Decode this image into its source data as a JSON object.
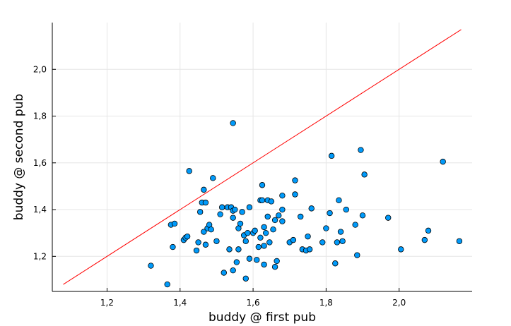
{
  "chart_data": {
    "type": "scatter",
    "xlabel": "buddy @ first pub",
    "ylabel": "buddy @ second pub",
    "xlim": [
      1.05,
      2.2
    ],
    "ylim": [
      1.05,
      2.2
    ],
    "xticks": [
      1.2,
      1.4,
      1.6,
      1.8,
      2.0
    ],
    "yticks": [
      1.2,
      1.4,
      1.6,
      1.8,
      2.0
    ],
    "xtick_labels": [
      "1,2",
      "1,4",
      "1,6",
      "1,8",
      "2,0"
    ],
    "ytick_labels": [
      "1,2",
      "1,4",
      "1,6",
      "1,8",
      "2,0"
    ],
    "grid": true,
    "legend": "none",
    "colors": {
      "points": "#009AFA",
      "point_edge": "#000000",
      "reference_line": "#FF0000",
      "grid": "#E5E5E5"
    },
    "reference_line": {
      "x": [
        1.08,
        2.17
      ],
      "y": [
        1.08,
        2.17
      ]
    },
    "points": [
      [
        1.32,
        1.16
      ],
      [
        1.365,
        1.08
      ],
      [
        1.375,
        1.335
      ],
      [
        1.38,
        1.24
      ],
      [
        1.385,
        1.34
      ],
      [
        1.41,
        1.27
      ],
      [
        1.415,
        1.28
      ],
      [
        1.42,
        1.285
      ],
      [
        1.425,
        1.565
      ],
      [
        1.445,
        1.225
      ],
      [
        1.45,
        1.26
      ],
      [
        1.455,
        1.39
      ],
      [
        1.46,
        1.43
      ],
      [
        1.465,
        1.485
      ],
      [
        1.465,
        1.305
      ],
      [
        1.47,
        1.43
      ],
      [
        1.47,
        1.25
      ],
      [
        1.475,
        1.32
      ],
      [
        1.48,
        1.335
      ],
      [
        1.485,
        1.315
      ],
      [
        1.49,
        1.535
      ],
      [
        1.5,
        1.265
      ],
      [
        1.51,
        1.38
      ],
      [
        1.515,
        1.41
      ],
      [
        1.52,
        1.13
      ],
      [
        1.53,
        1.41
      ],
      [
        1.535,
        1.23
      ],
      [
        1.54,
        1.41
      ],
      [
        1.545,
        1.77
      ],
      [
        1.545,
        1.395
      ],
      [
        1.545,
        1.365
      ],
      [
        1.545,
        1.14
      ],
      [
        1.55,
        1.4
      ],
      [
        1.555,
        1.175
      ],
      [
        1.56,
        1.23
      ],
      [
        1.56,
        1.32
      ],
      [
        1.565,
        1.34
      ],
      [
        1.57,
        1.39
      ],
      [
        1.575,
        1.29
      ],
      [
        1.58,
        1.105
      ],
      [
        1.58,
        1.265
      ],
      [
        1.585,
        1.3
      ],
      [
        1.59,
        1.41
      ],
      [
        1.59,
        1.19
      ],
      [
        1.6,
        1.3
      ],
      [
        1.605,
        1.31
      ],
      [
        1.61,
        1.185
      ],
      [
        1.615,
        1.24
      ],
      [
        1.62,
        1.44
      ],
      [
        1.62,
        1.28
      ],
      [
        1.625,
        1.505
      ],
      [
        1.625,
        1.44
      ],
      [
        1.63,
        1.325
      ],
      [
        1.63,
        1.245
      ],
      [
        1.63,
        1.165
      ],
      [
        1.635,
        1.3
      ],
      [
        1.64,
        1.37
      ],
      [
        1.64,
        1.44
      ],
      [
        1.645,
        1.26
      ],
      [
        1.65,
        1.435
      ],
      [
        1.655,
        1.315
      ],
      [
        1.66,
        1.155
      ],
      [
        1.66,
        1.355
      ],
      [
        1.665,
        1.18
      ],
      [
        1.67,
        1.375
      ],
      [
        1.68,
        1.46
      ],
      [
        1.68,
        1.4
      ],
      [
        1.68,
        1.35
      ],
      [
        1.7,
        1.26
      ],
      [
        1.71,
        1.27
      ],
      [
        1.715,
        1.465
      ],
      [
        1.715,
        1.525
      ],
      [
        1.73,
        1.37
      ],
      [
        1.735,
        1.23
      ],
      [
        1.745,
        1.225
      ],
      [
        1.75,
        1.285
      ],
      [
        1.755,
        1.23
      ],
      [
        1.76,
        1.405
      ],
      [
        1.79,
        1.26
      ],
      [
        1.8,
        1.32
      ],
      [
        1.81,
        1.385
      ],
      [
        1.815,
        1.63
      ],
      [
        1.825,
        1.17
      ],
      [
        1.83,
        1.26
      ],
      [
        1.835,
        1.44
      ],
      [
        1.84,
        1.305
      ],
      [
        1.845,
        1.265
      ],
      [
        1.855,
        1.4
      ],
      [
        1.88,
        1.335
      ],
      [
        1.885,
        1.205
      ],
      [
        1.895,
        1.655
      ],
      [
        1.9,
        1.375
      ],
      [
        1.905,
        1.55
      ],
      [
        1.97,
        1.365
      ],
      [
        2.005,
        1.23
      ],
      [
        2.07,
        1.27
      ],
      [
        2.08,
        1.31
      ],
      [
        2.12,
        1.605
      ],
      [
        2.165,
        1.265
      ]
    ]
  }
}
